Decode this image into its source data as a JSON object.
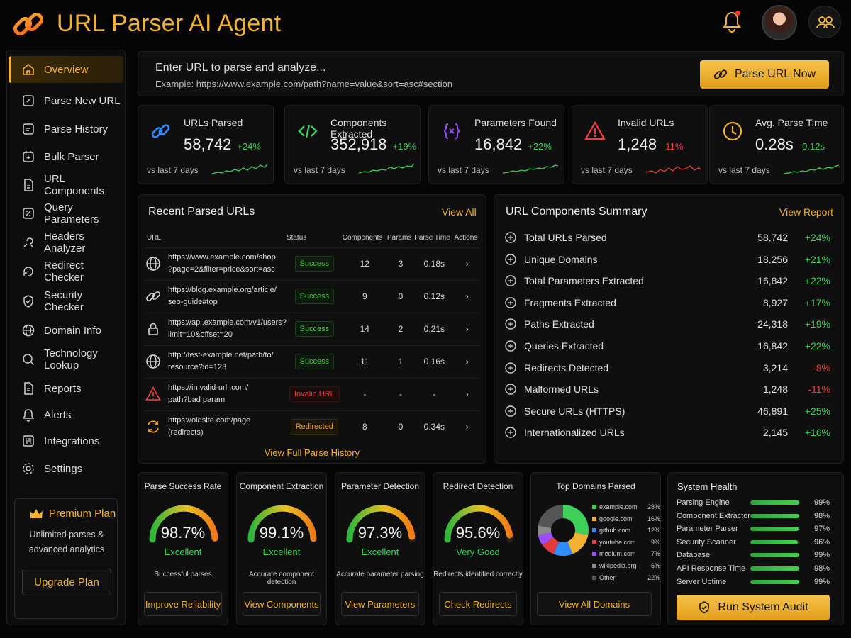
{
  "app": {
    "title": "URL Parser AI Agent"
  },
  "sidebar": {
    "items": [
      {
        "label": "Overview",
        "icon": "home-icon"
      },
      {
        "label": "Parse New URL",
        "icon": "link-icon"
      },
      {
        "label": "Parse History",
        "icon": "history-icon"
      },
      {
        "label": "Bulk Parser",
        "icon": "bulk-icon"
      },
      {
        "label": "URL Components",
        "icon": "components-icon"
      },
      {
        "label": "Query Parameters",
        "icon": "query-icon"
      },
      {
        "label": "Headers Analyzer",
        "icon": "headers-icon"
      },
      {
        "label": "Redirect Checker",
        "icon": "redirect-icon"
      },
      {
        "label": "Security Checker",
        "icon": "shield-icon"
      },
      {
        "label": "Domain Info",
        "icon": "globe-icon"
      },
      {
        "label": "Technology Lookup",
        "icon": "tech-icon"
      },
      {
        "label": "Reports",
        "icon": "report-icon"
      },
      {
        "label": "Alerts",
        "icon": "bell-icon"
      },
      {
        "label": "Integrations",
        "icon": "integrations-icon"
      },
      {
        "label": "Settings",
        "icon": "gear-icon"
      }
    ],
    "premium": {
      "title": "Premium Plan",
      "desc": "Unlimited parses & advanced analytics",
      "button": "Upgrade Plan"
    }
  },
  "urlbar": {
    "placeholder": "Enter URL to parse and analyze...",
    "example": "Example: https://www.example.com/path?name=value&sort=asc#section",
    "button": "Parse URL Now"
  },
  "stats": [
    {
      "label": "URLs Parsed",
      "value": "58,742",
      "change": "+24%",
      "trend": "up",
      "foot": "vs last 7 days",
      "color": "#2f8cff"
    },
    {
      "label": "Components Extracted",
      "value": "352,918",
      "change": "+19%",
      "trend": "up",
      "foot": "vs last 7 days",
      "color": "#3ecf5a"
    },
    {
      "label": "Parameters Found",
      "value": "16,842",
      "change": "+22%",
      "trend": "up",
      "foot": "vs last 7 days",
      "color": "#9b4dff"
    },
    {
      "label": "Invalid URLs",
      "value": "1,248",
      "change": "-11%",
      "trend": "down",
      "foot": "vs last 7 days",
      "color": "#ff3b3b"
    },
    {
      "label": "Avg. Parse Time",
      "value": "0.28s",
      "change": "-0.12s",
      "trend": "up",
      "foot": "vs last 7 days",
      "color": "#f2b233"
    }
  ],
  "recent": {
    "title": "Recent Parsed URLs",
    "link": "View All",
    "columns": [
      "URL",
      "Status",
      "Components",
      "Params",
      "Parse Time",
      "Actions"
    ],
    "rows": [
      {
        "icon": "globe-icon",
        "url1": "https://www.example.com/shop",
        "url2": "?page=2&filter=price&sort=asc",
        "status": "Success",
        "kind": "ok",
        "components": "12",
        "params": "3",
        "time": "0.18s"
      },
      {
        "icon": "link-icon",
        "url1": "https://blog.example.org/article/",
        "url2": "seo-guide#top",
        "status": "Success",
        "kind": "ok",
        "components": "9",
        "params": "0",
        "time": "0.12s"
      },
      {
        "icon": "lock-icon",
        "url1": "https://api.example.com/v1/users?",
        "url2": "limit=10&offset=20",
        "status": "Success",
        "kind": "ok",
        "components": "14",
        "params": "2",
        "time": "0.21s"
      },
      {
        "icon": "globe-icon",
        "url1": "http://test-example.net/path/to/",
        "url2": "resource?id=123",
        "status": "Success",
        "kind": "ok",
        "components": "11",
        "params": "1",
        "time": "0.16s"
      },
      {
        "icon": "warning-icon",
        "url1": "https://in valid-url .com/",
        "url2": "path?bad param",
        "status": "Invalid URL",
        "kind": "bad",
        "components": "-",
        "params": "-",
        "time": "-"
      },
      {
        "icon": "redirect-icon",
        "url1": "https://oldsite.com/page",
        "url2": "(redirects)",
        "status": "Redirected",
        "kind": "warn",
        "components": "8",
        "params": "0",
        "time": "0.34s"
      }
    ],
    "footer": "View Full Parse History"
  },
  "summary": {
    "title": "URL Components Summary",
    "link": "View Report",
    "rows": [
      {
        "label": "Total URLs Parsed",
        "value": "58,742",
        "change": "+24%",
        "trend": "up"
      },
      {
        "label": "Unique Domains",
        "value": "18,256",
        "change": "+21%",
        "trend": "up"
      },
      {
        "label": "Total Parameters Extracted",
        "value": "16,842",
        "change": "+22%",
        "trend": "up"
      },
      {
        "label": "Fragments Extracted",
        "value": "8,927",
        "change": "+17%",
        "trend": "up"
      },
      {
        "label": "Paths Extracted",
        "value": "24,318",
        "change": "+19%",
        "trend": "up"
      },
      {
        "label": "Queries Extracted",
        "value": "16,842",
        "change": "+22%",
        "trend": "up"
      },
      {
        "label": "Redirects Detected",
        "value": "3,214",
        "change": "-8%",
        "trend": "down"
      },
      {
        "label": "Malformed URLs",
        "value": "1,248",
        "change": "-11%",
        "trend": "down"
      },
      {
        "label": "Secure URLs (HTTPS)",
        "value": "46,891",
        "change": "+25%",
        "trend": "up"
      },
      {
        "label": "Internationalized URLs",
        "value": "2,145",
        "change": "+16%",
        "trend": "up"
      }
    ]
  },
  "gauges": [
    {
      "title": "Parse Success Rate",
      "value": "98.7%",
      "pct": 98.7,
      "rating": "Excellent",
      "desc": "Successful parses",
      "button": "Improve Reliability"
    },
    {
      "title": "Component Extraction",
      "value": "99.1%",
      "pct": 99.1,
      "rating": "Excellent",
      "desc": "Accurate component detection",
      "button": "View Components"
    },
    {
      "title": "Parameter Detection",
      "value": "97.3%",
      "pct": 97.3,
      "rating": "Excellent",
      "desc": "Accurate parameter parsing",
      "button": "View Parameters"
    },
    {
      "title": "Redirect Detection",
      "value": "95.6%",
      "pct": 95.6,
      "rating": "Very Good",
      "desc": "Redirects identified correctly",
      "button": "Check Redirects"
    }
  ],
  "domains": {
    "title": "Top Domains Parsed",
    "items": [
      {
        "name": "example.com",
        "pct": "28%",
        "share": 28,
        "color": "#3ecf5a"
      },
      {
        "name": "google.com",
        "pct": "16%",
        "share": 16,
        "color": "#f2b233"
      },
      {
        "name": "github.com",
        "pct": "12%",
        "share": 12,
        "color": "#2f8cff"
      },
      {
        "name": "youtube.com",
        "pct": "9%",
        "share": 9,
        "color": "#e03a3a"
      },
      {
        "name": "medium.com",
        "pct": "7%",
        "share": 7,
        "color": "#9b4dff"
      },
      {
        "name": "wikipedia.org",
        "pct": "6%",
        "share": 6,
        "color": "#8a8a8a"
      },
      {
        "name": "Other",
        "pct": "22%",
        "share": 22,
        "color": "#555555"
      }
    ],
    "button": "View All Domains"
  },
  "health": {
    "title": "System Health",
    "items": [
      {
        "name": "Parsing Engine",
        "pct": "99%",
        "level": 99
      },
      {
        "name": "Component Extractor",
        "pct": "98%",
        "level": 98
      },
      {
        "name": "Parameter Parser",
        "pct": "97%",
        "level": 97
      },
      {
        "name": "Security Scanner",
        "pct": "96%",
        "level": 96
      },
      {
        "name": "Database",
        "pct": "99%",
        "level": 99
      },
      {
        "name": "API Response Time",
        "pct": "98%",
        "level": 98
      },
      {
        "name": "Server Uptime",
        "pct": "99%",
        "level": 99
      }
    ],
    "button": "Run System Audit"
  }
}
